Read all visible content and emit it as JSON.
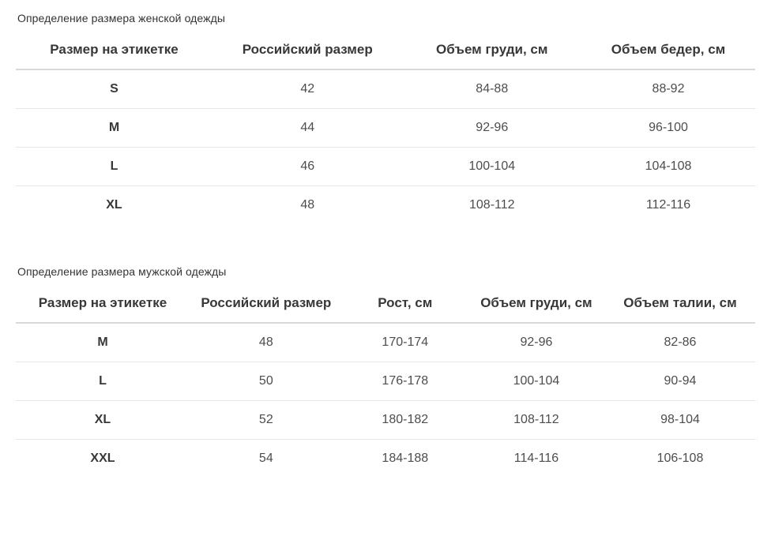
{
  "women_table": {
    "title": "Определение размера женской одежды",
    "headers": [
      "Размер на этикетке",
      "Российский размер",
      "Объем груди, см",
      "Объем бедер, см"
    ],
    "rows": [
      [
        "S",
        "42",
        "84-88",
        "88-92"
      ],
      [
        "M",
        "44",
        "92-96",
        "96-100"
      ],
      [
        "L",
        "46",
        "100-104",
        "104-108"
      ],
      [
        "XL",
        "48",
        "108-112",
        "112-116"
      ]
    ]
  },
  "men_table": {
    "title": "Определение размера мужской одежды",
    "headers": [
      "Размер на этикетке",
      "Российский размер",
      "Рост, см",
      "Объем груди, см",
      "Объем талии, см"
    ],
    "rows": [
      [
        "M",
        "48",
        "170-174",
        "92-96",
        "82-86"
      ],
      [
        "L",
        "50",
        "176-178",
        "100-104",
        "90-94"
      ],
      [
        "XL",
        "52",
        "180-182",
        "108-112",
        "98-104"
      ],
      [
        "XXL",
        "54",
        "184-188",
        "114-116",
        "106-108"
      ]
    ]
  },
  "colors": {
    "heading_text": "#383838",
    "body_text": "#4d4d4d",
    "header_rule": "#d9d9d9",
    "row_rule": "#e7e7e7",
    "background": "#ffffff"
  }
}
